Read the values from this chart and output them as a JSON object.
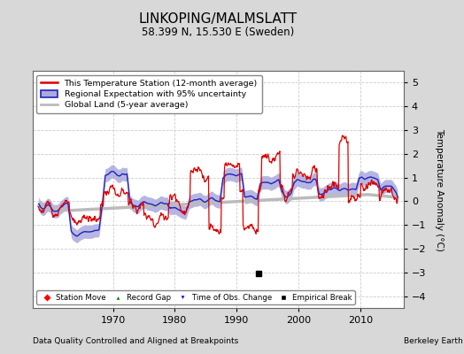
{
  "title": "LINKOPING/MALMSLATT",
  "subtitle": "58.399 N, 15.530 E (Sweden)",
  "xlabel_left": "Data Quality Controlled and Aligned at Breakpoints",
  "xlabel_right": "Berkeley Earth",
  "ylabel": "Temperature Anomaly (°C)",
  "xlim": [
    1957,
    2017
  ],
  "ylim": [
    -4.5,
    5.5
  ],
  "yticks": [
    -4,
    -3,
    -2,
    -1,
    0,
    1,
    2,
    3,
    4,
    5
  ],
  "xticks": [
    1970,
    1980,
    1990,
    2000,
    2010
  ],
  "bg_color": "#d8d8d8",
  "plot_bg_color": "#ffffff",
  "station_color": "#dd0000",
  "regional_color": "#2222bb",
  "regional_fill_color": "#aaaadd",
  "global_color": "#bbbbbb",
  "empirical_break_year": 1993.5,
  "empirical_break_value": -3.05,
  "legend_labels": [
    "This Temperature Station (12-month average)",
    "Regional Expectation with 95% uncertainty",
    "Global Land (5-year average)"
  ]
}
